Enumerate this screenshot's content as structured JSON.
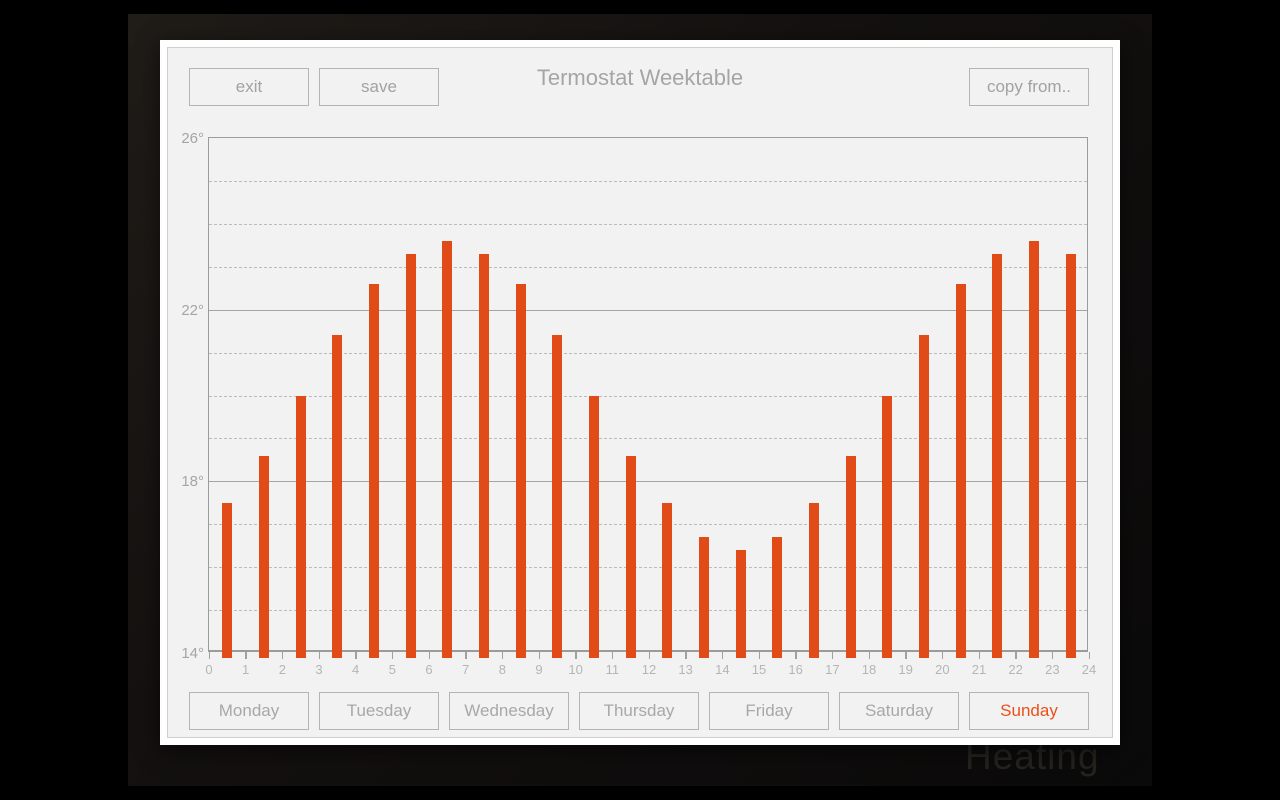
{
  "window": {
    "watermark": "Heating"
  },
  "header": {
    "title": "Termostat Weektable",
    "exit_label": "exit",
    "save_label": "save",
    "copy_label": "copy from.."
  },
  "days": {
    "items": [
      "Monday",
      "Tuesday",
      "Wednesday",
      "Thursday",
      "Friday",
      "Saturday",
      "Sunday"
    ],
    "selected": "Sunday"
  },
  "chart_data": {
    "type": "bar",
    "title": "Termostat Weektable",
    "hours": [
      0,
      1,
      2,
      3,
      4,
      5,
      6,
      7,
      8,
      9,
      10,
      11,
      12,
      13,
      14,
      15,
      16,
      17,
      18,
      19,
      20,
      21,
      22,
      23
    ],
    "values": [
      17.5,
      18.6,
      20.0,
      21.4,
      22.6,
      23.3,
      23.6,
      23.3,
      22.6,
      21.4,
      20.0,
      18.6,
      17.5,
      16.7,
      16.4,
      16.7,
      17.5,
      18.6,
      20.0,
      21.4,
      22.6,
      23.3,
      23.6,
      23.3
    ],
    "bar_centered_at_half_hour": true,
    "xlim": [
      0,
      24
    ],
    "ylim": [
      14,
      26
    ],
    "x_tick_labels": [
      "0",
      "1",
      "2",
      "3",
      "4",
      "5",
      "6",
      "7",
      "8",
      "9",
      "10",
      "11",
      "12",
      "13",
      "14",
      "15",
      "16",
      "17",
      "18",
      "19",
      "20",
      "21",
      "22",
      "23",
      "24"
    ],
    "y_major_ticks": [
      26,
      22,
      18,
      14
    ],
    "y_tick_labels": [
      "26°",
      "22°",
      "18°",
      "14°"
    ],
    "y_solid_lines": [
      18,
      22
    ],
    "grid": "solid every 4 degrees, dashed every 1 degree",
    "legend": "none",
    "bar_color": "#e04b17"
  },
  "colors": {
    "accent": "#e04b17",
    "selected_day_text": "#ea5019",
    "panel_bg": "#f2f2f2",
    "frame": "#ffffff",
    "muted_text": "#a5a5a5",
    "axis": "#9b9b9b",
    "desktop_bg": "#141110"
  }
}
